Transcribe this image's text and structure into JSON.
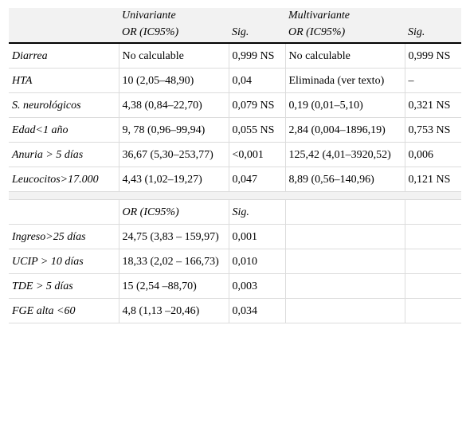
{
  "header": {
    "group1": "Univariante",
    "group2": "Multivariante",
    "or_label": "OR (IC95%)",
    "sig_label": "Sig."
  },
  "rows": [
    {
      "label": "Diarrea",
      "uni_or": "No calculable",
      "uni_sig": "0,999 NS",
      "multi_or": "No calculable",
      "multi_sig": "0,999 NS"
    },
    {
      "label": "HTA",
      "uni_or": "10 (2,05–48,90)",
      "uni_sig": "0,04",
      "multi_or": "Eliminada (ver texto)",
      "multi_sig": "–"
    },
    {
      "label": "S. neurológicos",
      "uni_or": "4,38 (0,84–22,70)",
      "uni_sig": "0,079 NS",
      "multi_or": "0,19 (0,01–5,10)",
      "multi_sig": "0,321 NS"
    },
    {
      "label": "Edad<1 año",
      "uni_or": "9, 78 (0,96–99,94)",
      "uni_sig": "0,055 NS",
      "multi_or": "2,84 (0,004–1896,19)",
      "multi_sig": "0,753 NS"
    },
    {
      "label": "Anuria > 5 días",
      "uni_or": "36,67 (5,30–253,77)",
      "uni_sig": "<0,001",
      "multi_or": "125,42 (4,01–3920,52)",
      "multi_sig": "0,006"
    },
    {
      "label": "Leucocitos>17.000",
      "uni_or": "4,43 (1,02–19,27)",
      "uni_sig": "0,047",
      "multi_or": "8,89 (0,56–140,96)",
      "multi_sig": "0,121 NS"
    }
  ],
  "subheader": {
    "or_label": "OR (IC95%)",
    "sig_label": "Sig."
  },
  "rows2": [
    {
      "label": "Ingreso>25 días",
      "or": "24,75 (3,83 – 159,97)",
      "sig": "0,001"
    },
    {
      "label": "UCIP > 10 días",
      "or": "18,33 (2,02 – 166,73)",
      "sig": "0,010"
    },
    {
      "label": "TDE > 5 días",
      "or": "15 (2,54 –88,70)",
      "sig": "0,003"
    },
    {
      "label": "FGE alta <60",
      "or": "4,8 (1,13 –20,46)",
      "sig": "0,034"
    }
  ]
}
